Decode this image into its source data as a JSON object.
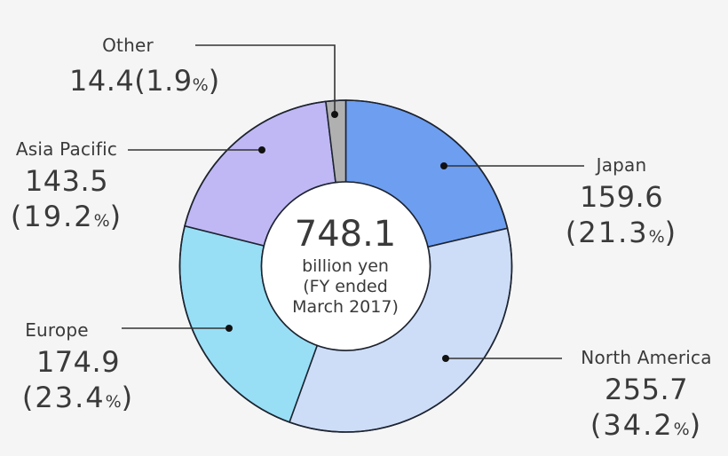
{
  "chart_data": {
    "type": "pie",
    "subtype": "donut",
    "title": "",
    "center_label": {
      "total": "748.1",
      "unit": "billion yen",
      "period_line1": "(FY ended",
      "period_line2": "March 2017)"
    },
    "categories": [
      "Japan",
      "North America",
      "Europe",
      "Asia Pacific",
      "Other"
    ],
    "values": [
      159.6,
      255.7,
      174.9,
      143.5,
      14.4
    ],
    "percentages": [
      21.3,
      34.2,
      23.4,
      19.2,
      1.9
    ],
    "colors": [
      "#6d9ef0",
      "#cdddf8",
      "#98dff6",
      "#c0b8f5",
      "#b0b0b0"
    ],
    "unit": "billion yen",
    "total": 748.1,
    "start_angle": "12 o'clock",
    "direction": "clockwise",
    "legend": "leader-line callouts"
  },
  "labels": {
    "japan": {
      "name": "Japan",
      "value": "159.6",
      "pct": "21.3",
      "pct_sign": "%"
    },
    "north_america": {
      "name": "North America",
      "value": "255.7",
      "pct": "34.2",
      "pct_sign": "%"
    },
    "europe": {
      "name": "Europe",
      "value": "174.9",
      "pct": "23.4",
      "pct_sign": "%"
    },
    "asia_pacific": {
      "name": "Asia Pacific",
      "value": "143.5",
      "pct": "19.2",
      "pct_sign": "%"
    },
    "other": {
      "name": "Other",
      "value": "14.4",
      "pct": "1.9",
      "pct_sign": "%"
    }
  },
  "style": {
    "background": "#f5f5f5",
    "text_color": "#3a3a3a",
    "outline_color": "#1e2430"
  }
}
